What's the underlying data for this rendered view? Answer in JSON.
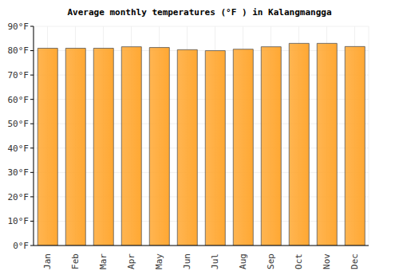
{
  "chart_data": {
    "type": "bar",
    "title": "Average monthly temperatures (°F ) in Kalangmangga",
    "categories": [
      "Jan",
      "Feb",
      "Mar",
      "Apr",
      "May",
      "Jun",
      "Jul",
      "Aug",
      "Sep",
      "Oct",
      "Nov",
      "Dec"
    ],
    "values": [
      81,
      81,
      81,
      81.6,
      81.3,
      80.4,
      80,
      80.6,
      81.6,
      83,
      83,
      81.7
    ],
    "color": "#ffa833",
    "ylim": [
      0,
      90
    ],
    "yticks": [
      {
        "value": 0,
        "label": "0°F"
      },
      {
        "value": 10,
        "label": "10°F"
      },
      {
        "value": 20,
        "label": "20°F"
      },
      {
        "value": 30,
        "label": "30°F"
      },
      {
        "value": 40,
        "label": "40°F"
      },
      {
        "value": 50,
        "label": "50°F"
      },
      {
        "value": 60,
        "label": "60°F"
      },
      {
        "value": 70,
        "label": "70°F"
      },
      {
        "value": 80,
        "label": "80°F"
      },
      {
        "value": 90,
        "label": "90°F"
      }
    ],
    "grid": true
  }
}
